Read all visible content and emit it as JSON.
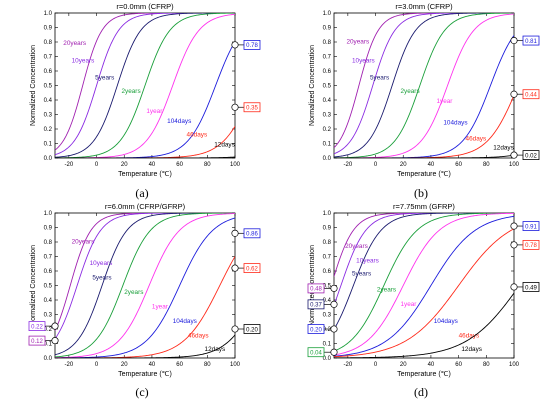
{
  "colors": {
    "12days": "#000000",
    "46days": "#ff2a1a",
    "104days": "#1c1cdc",
    "1year": "#ff33ee",
    "2years": "#1a9f3a",
    "5years": "#1a1a6e",
    "10years": "#8a2be2",
    "20years": "#a020b0"
  },
  "chart_data": [
    {
      "type": "line",
      "caption": "(a)",
      "title": "r=0.0mm (CFRP)",
      "xlabel": "Temperature (℃)",
      "ylabel": "Normalized Concentration",
      "xlim": [
        -30,
        100
      ],
      "ylim": [
        0,
        1.0
      ],
      "xticks": [
        "-20",
        "0",
        "20",
        "40",
        "60",
        "80",
        "100"
      ],
      "yticks": [
        "0.0",
        "0.1",
        "0.2",
        "0.3",
        "0.4",
        "0.5",
        "0.6",
        "0.7",
        "0.8",
        "0.9",
        "1.0"
      ],
      "series": [
        {
          "name": "20years",
          "key": "20years",
          "mid": -10,
          "w": 7,
          "label_at": [
            -24,
            0.78
          ]
        },
        {
          "name": "10years",
          "key": "10years",
          "mid": 0,
          "w": 8,
          "label_at": [
            -18,
            0.66
          ]
        },
        {
          "name": "5years",
          "key": "5years",
          "mid": 15,
          "w": 8.5,
          "label_at": [
            -1,
            0.54
          ]
        },
        {
          "name": "2years",
          "key": "2years",
          "mid": 35,
          "w": 9,
          "label_at": [
            18,
            0.45
          ]
        },
        {
          "name": "1year",
          "key": "1year",
          "mid": 55,
          "w": 9.5,
          "label_at": [
            36,
            0.31
          ]
        },
        {
          "name": "104days",
          "key": "104days",
          "mid": 86,
          "w": 10,
          "label_at": [
            51,
            0.24
          ]
        },
        {
          "name": "46days",
          "key": "46days",
          "mid": 114,
          "w": 11,
          "label_at": [
            65,
            0.15
          ]
        },
        {
          "name": "12days",
          "key": "12days",
          "mid": 160,
          "w": 12,
          "label_at": [
            85,
            0.08
          ]
        }
      ],
      "annotations": [
        {
          "text": "0.78",
          "key": "104days",
          "x": 100,
          "y": 0.78
        },
        {
          "text": "0.35",
          "key": "46days",
          "x": 100,
          "y": 0.35
        }
      ]
    },
    {
      "type": "line",
      "caption": "(b)",
      "title": "r=3.0mm (CFRP)",
      "xlabel": "Temperature (℃)",
      "ylabel": "Normalized Concentration",
      "xlim": [
        -30,
        100
      ],
      "ylim": [
        0,
        1.0
      ],
      "xticks": [
        "-20",
        "0",
        "20",
        "40",
        "60",
        "80",
        "100"
      ],
      "yticks": [
        "0.0",
        "0.1",
        "0.2",
        "0.3",
        "0.4",
        "0.5",
        "0.6",
        "0.7",
        "0.8",
        "0.9",
        "1.0"
      ],
      "series": [
        {
          "name": "20years",
          "key": "20years",
          "mid": -12,
          "w": 7,
          "label_at": [
            -21,
            0.79
          ]
        },
        {
          "name": "10years",
          "key": "10years",
          "mid": -2,
          "w": 8,
          "label_at": [
            -17,
            0.66
          ]
        },
        {
          "name": "5years",
          "key": "5years",
          "mid": 12,
          "w": 8.5,
          "label_at": [
            -4,
            0.54
          ]
        },
        {
          "name": "2years",
          "key": "2years",
          "mid": 32,
          "w": 9,
          "label_at": [
            18,
            0.45
          ]
        },
        {
          "name": "1year",
          "key": "1year",
          "mid": 52,
          "w": 9.5,
          "label_at": [
            44,
            0.38
          ]
        },
        {
          "name": "104days",
          "key": "104days",
          "mid": 83,
          "w": 10,
          "label_at": [
            49,
            0.23
          ]
        },
        {
          "name": "46days",
          "key": "46days",
          "mid": 103,
          "w": 11,
          "label_at": [
            65,
            0.12
          ]
        },
        {
          "name": "12days",
          "key": "12days",
          "mid": 147,
          "w": 12,
          "label_at": [
            85,
            0.06
          ]
        }
      ],
      "annotations": [
        {
          "text": "0.81",
          "key": "104days",
          "x": 100,
          "y": 0.81
        },
        {
          "text": "0.44",
          "key": "46days",
          "x": 100,
          "y": 0.44
        },
        {
          "text": "0.02",
          "key": "12days",
          "x": 100,
          "y": 0.02
        }
      ]
    },
    {
      "type": "line",
      "caption": "(c)",
      "title": "r=6.0mm (CFRP/GFRP)",
      "xlabel": "Temperature (℃)",
      "ylabel": "Normalized Concentration",
      "xlim": [
        -30,
        100
      ],
      "ylim": [
        0,
        1.0
      ],
      "xticks": [
        "-20",
        "0",
        "20",
        "40",
        "60",
        "80",
        "100"
      ],
      "yticks": [
        "0.0",
        "0.1",
        "0.2",
        "0.3",
        "0.4",
        "0.5",
        "0.6",
        "0.7",
        "0.8",
        "0.9",
        "1.0"
      ],
      "series": [
        {
          "name": "20years",
          "key": "20years",
          "mid": -19,
          "w": 7.5,
          "label_at": [
            -18,
            0.79
          ]
        },
        {
          "name": "10years",
          "key": "10years",
          "mid": -14,
          "w": 8.5,
          "label_at": [
            -5,
            0.64
          ]
        },
        {
          "name": "5years",
          "key": "5years",
          "mid": 4,
          "w": 9,
          "label_at": [
            -3,
            0.54
          ]
        },
        {
          "name": "2years",
          "key": "2years",
          "mid": 19,
          "w": 10,
          "label_at": [
            20,
            0.44
          ]
        },
        {
          "name": "1year",
          "key": "1year",
          "mid": 38,
          "w": 11,
          "label_at": [
            40,
            0.34
          ]
        },
        {
          "name": "104days",
          "key": "104days",
          "mid": 60,
          "w": 12,
          "label_at": [
            55,
            0.24
          ]
        },
        {
          "name": "46days",
          "key": "46days",
          "mid": 89,
          "w": 13,
          "label_at": [
            66,
            0.14
          ]
        },
        {
          "name": "12days",
          "key": "12days",
          "mid": 120,
          "w": 12,
          "label_at": [
            78,
            0.05
          ]
        }
      ],
      "annotations": [
        {
          "text": "0.86",
          "key": "104days",
          "x": 100,
          "y": 0.86
        },
        {
          "text": "0.62",
          "key": "46days",
          "x": 100,
          "y": 0.62
        },
        {
          "text": "0.20",
          "key": "12days",
          "x": 100,
          "y": 0.2
        },
        {
          "text": "0.22",
          "key": "10years",
          "x": -30,
          "y": 0.22
        },
        {
          "text": "0.12",
          "key": "20years",
          "x": -30,
          "y": 0.12
        }
      ]
    },
    {
      "type": "line",
      "caption": "(d)",
      "title": "r=7.75mm (GFRP)",
      "xlabel": "Temperature (℃)",
      "ylabel": "Normalized Concentration",
      "xlim": [
        -30,
        100
      ],
      "ylim": [
        0,
        1.0
      ],
      "xticks": [
        "-20",
        "0",
        "20",
        "40",
        "60",
        "80",
        "100"
      ],
      "yticks": [
        "0.0",
        "0.1",
        "0.2",
        "0.3",
        "0.4",
        "0.5",
        "0.6",
        "0.7",
        "0.8",
        "0.9",
        "1.0"
      ],
      "series": [
        {
          "name": "20years",
          "key": "20years",
          "mid": -32,
          "w": 8,
          "label_at": [
            -22,
            0.76
          ]
        },
        {
          "name": "10years",
          "key": "10years",
          "mid": -25,
          "w": 9,
          "label_at": [
            -14,
            0.66
          ]
        },
        {
          "name": "5years",
          "key": "5years",
          "mid": -16,
          "w": 10,
          "label_at": [
            -17,
            0.57
          ]
        },
        {
          "name": "2years",
          "key": "2years",
          "mid": 6,
          "w": 12,
          "label_at": [
            1,
            0.46
          ]
        },
        {
          "name": "1year",
          "key": "1year",
          "mid": 20,
          "w": 13,
          "label_at": [
            18,
            0.36
          ]
        },
        {
          "name": "104days",
          "key": "104days",
          "mid": 40,
          "w": 16,
          "label_at": [
            42,
            0.24
          ]
        },
        {
          "name": "46days",
          "key": "46days",
          "mid": 60,
          "w": 19,
          "label_at": [
            60,
            0.14
          ]
        },
        {
          "name": "12days",
          "key": "12days",
          "mid": 104,
          "w": 19,
          "label_at": [
            62,
            0.05
          ]
        }
      ],
      "annotations": [
        {
          "text": "0.91",
          "key": "104days",
          "x": 100,
          "y": 0.91
        },
        {
          "text": "0.78",
          "key": "46days",
          "x": 100,
          "y": 0.78
        },
        {
          "text": "0.49",
          "key": "12days",
          "x": 100,
          "y": 0.49
        },
        {
          "text": "0.48",
          "key": "20years",
          "x": -30,
          "y": 0.48
        },
        {
          "text": "0.37",
          "key": "5years",
          "x": -30,
          "y": 0.37
        },
        {
          "text": "0.20",
          "key": "104days",
          "x": -30,
          "y": 0.2
        },
        {
          "text": "0.04",
          "key": "2years",
          "x": -30,
          "y": 0.04
        }
      ]
    }
  ]
}
